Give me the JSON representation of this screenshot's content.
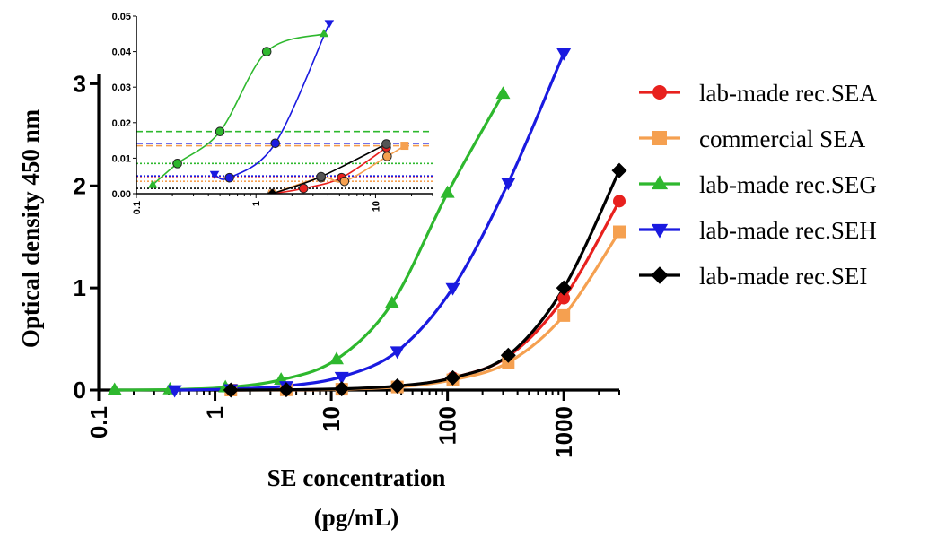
{
  "chart_data": [
    {
      "type": "line",
      "ylabel": "Optical density 450 nm",
      "xlabel_line1": "SE concentration",
      "xlabel_line2": "(pg/mL)",
      "x_scale": "log",
      "xlim": [
        0.1,
        3000
      ],
      "ylim": [
        0,
        3.1
      ],
      "x_ticks": [
        "0.1",
        "1",
        "10",
        "100",
        "1000"
      ],
      "y_ticks": [
        "0",
        "1",
        "2",
        "3"
      ],
      "legend_position": "right",
      "series": [
        {
          "name": "lab-made rec.SEA",
          "color": "#e8211e",
          "marker": "circle",
          "x": [
            1.37,
            4.1,
            12.3,
            37,
            111,
            333,
            1000,
            3000
          ],
          "y": [
            0.0,
            0.003,
            0.01,
            0.035,
            0.12,
            0.33,
            0.9,
            1.85
          ]
        },
        {
          "name": "commercial  SEA",
          "color": "#f5a050",
          "marker": "square",
          "x": [
            1.37,
            4.1,
            12.3,
            37,
            111,
            333,
            1000,
            3000
          ],
          "y": [
            0.0,
            0.002,
            0.008,
            0.03,
            0.1,
            0.27,
            0.73,
            1.55
          ]
        },
        {
          "name": "lab-made rec.SEG",
          "color": "#2eb82e",
          "marker": "triangle-up",
          "x": [
            0.137,
            0.41,
            1.23,
            3.7,
            11.1,
            33.3,
            100,
            300
          ],
          "y": [
            0.0,
            0.005,
            0.025,
            0.1,
            0.3,
            0.85,
            1.93,
            2.9
          ]
        },
        {
          "name": "lab-made rec.SEH",
          "color": "#1a1ae0",
          "marker": "triangle-down",
          "x": [
            0.45,
            1.37,
            4.1,
            12.3,
            37,
            111,
            333,
            1000
          ],
          "y": [
            0.0,
            0.01,
            0.04,
            0.13,
            0.38,
            1.0,
            2.03,
            3.3
          ]
        },
        {
          "name": "lab-made rec.SEI",
          "color": "#000000",
          "marker": "diamond",
          "x": [
            1.37,
            4.1,
            12.3,
            37,
            111,
            333,
            1000,
            3000
          ],
          "y": [
            0.0,
            0.003,
            0.012,
            0.04,
            0.12,
            0.34,
            1.0,
            2.15
          ]
        }
      ]
    },
    {
      "type": "line",
      "note": "inset",
      "x_scale": "log",
      "xlim": [
        0.1,
        30
      ],
      "ylim": [
        0,
        0.05
      ],
      "x_ticks": [
        "0.1",
        "1",
        "10"
      ],
      "y_ticks": [
        "0.00",
        "0.01",
        "0.02",
        "0.03",
        "0.04",
        "0.05"
      ],
      "thresholds": [
        {
          "y": 0.0175,
          "color": "#2eb82e"
        },
        {
          "y": 0.0142,
          "color": "#1a1ae0"
        },
        {
          "y": 0.0135,
          "color": "#f5a050"
        },
        {
          "y": 0.0085,
          "color": "#2eb82e"
        },
        {
          "y": 0.005,
          "color": "#1a1ae0"
        },
        {
          "y": 0.0045,
          "color": "#e8211e"
        },
        {
          "y": 0.0035,
          "color": "#f5a050"
        },
        {
          "y": 0.0015,
          "color": "#000000"
        }
      ],
      "series": [
        {
          "color": "#2eb82e",
          "marker": "triangle-up",
          "x": [
            0.137,
            0.22,
            0.5,
            1.23,
            3.7
          ],
          "y": [
            0.0025,
            0.0085,
            0.0175,
            0.04,
            0.045
          ]
        },
        {
          "color": "#1a1ae0",
          "marker": "triangle-down",
          "x": [
            0.45,
            0.6,
            1.45,
            4.1
          ],
          "y": [
            0.0055,
            0.0045,
            0.0142,
            0.048
          ]
        },
        {
          "color": "#e8211e",
          "marker": "circle",
          "x": [
            1.37,
            2.5,
            5.2,
            12.3
          ],
          "y": [
            0.0,
            0.0015,
            0.0045,
            0.013
          ]
        },
        {
          "color": "#f5a050",
          "marker": "square",
          "x": [
            1.37,
            3.5,
            5.5,
            12.5,
            17.5
          ],
          "y": [
            0.0,
            0.0045,
            0.0035,
            0.0105,
            0.0135
          ]
        },
        {
          "color": "#000000",
          "marker": "diamond",
          "x": [
            1.37,
            3.5,
            12.3
          ],
          "y": [
            0.0,
            0.0048,
            0.014
          ]
        }
      ]
    }
  ]
}
